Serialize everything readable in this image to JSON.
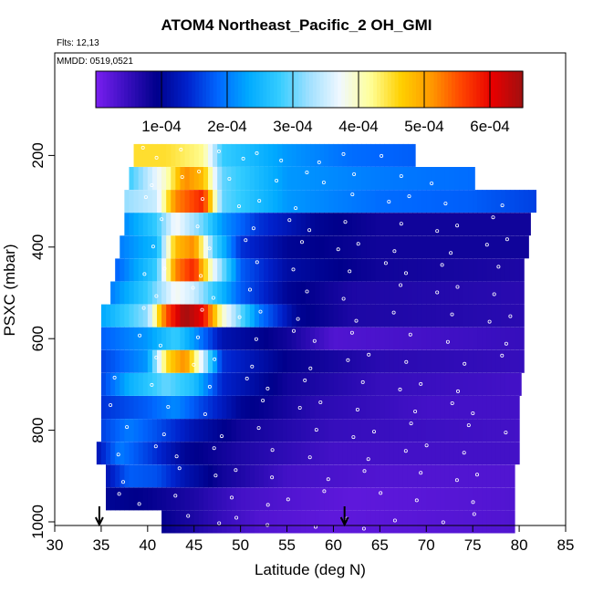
{
  "chart_data": {
    "type": "heatmap",
    "title": "ATOM4 Northeast_Pacific_2 OH_GMI",
    "subtitle_flights": "Flts: 12,13",
    "subtitle_dates": "MMDD: 0519,0521",
    "xlabel": "Latitude (deg N)",
    "ylabel": "PSXC (mbar)",
    "xlim": [
      30,
      85
    ],
    "ylim": [
      1000,
      0
    ],
    "x_ticks": [
      30,
      35,
      40,
      45,
      50,
      55,
      60,
      65,
      70,
      75,
      80,
      85
    ],
    "y_ticks": [
      200,
      400,
      600,
      800,
      1000
    ],
    "colorbar": {
      "range": [
        0,
        0.00065
      ],
      "tick_values": [
        0.0001,
        0.0002,
        0.0003,
        0.0004,
        0.0005,
        0.0006
      ],
      "tick_labels": [
        "1e-04",
        "2e-04",
        "3e-04",
        "4e-04",
        "5e-04",
        "6e-04"
      ],
      "colors": [
        "#7a1ff0",
        "#3a0fc0",
        "#00008b",
        "#0022cc",
        "#0066ff",
        "#00aaff",
        "#33ccff",
        "#a0e0ff",
        "#f0f8ff",
        "#ffff99",
        "#ffd000",
        "#ff9900",
        "#ff4400",
        "#e80000",
        "#a01010"
      ]
    },
    "layers": [
      {
        "p": 200,
        "lat_min": 38.5,
        "lat_max": 68.8,
        "profile": [
          [
            38.5,
            0.00045
          ],
          [
            42,
            0.00045
          ],
          [
            46,
            0.00042
          ],
          [
            48,
            0.00028
          ],
          [
            55,
            0.00022
          ],
          [
            62,
            0.00019
          ],
          [
            68.8,
            0.00018
          ]
        ]
      },
      {
        "p": 250,
        "lat_min": 38.0,
        "lat_max": 75.2,
        "profile": [
          [
            38,
            0.00028
          ],
          [
            42,
            0.0004
          ],
          [
            44,
            0.00052
          ],
          [
            46,
            0.00048
          ],
          [
            48,
            0.0003
          ],
          [
            55,
            0.00022
          ],
          [
            65,
            0.0002
          ],
          [
            75.2,
            0.00019
          ]
        ]
      },
      {
        "p": 300,
        "lat_min": 37.5,
        "lat_max": 81.8,
        "profile": [
          [
            37.5,
            0.00032
          ],
          [
            41,
            0.00035
          ],
          [
            43,
            0.00052
          ],
          [
            46,
            0.00058
          ],
          [
            48,
            0.0003
          ],
          [
            55,
            0.00022
          ],
          [
            65,
            0.00019
          ],
          [
            75,
            0.00018
          ],
          [
            81.8,
            0.00016
          ]
        ]
      },
      {
        "p": 350,
        "lat_min": 37.5,
        "lat_max": 81.2,
        "profile": [
          [
            37.5,
            0.00021
          ],
          [
            41,
            0.00028
          ],
          [
            43,
            0.00038
          ],
          [
            46,
            0.0003
          ],
          [
            48,
            0.00022
          ],
          [
            52,
            0.00015
          ],
          [
            58,
            0.0001
          ],
          [
            65,
            8e-05
          ],
          [
            81.2,
            8e-05
          ]
        ]
      },
      {
        "p": 400,
        "lat_min": 37.0,
        "lat_max": 81.0,
        "profile": [
          [
            37,
            0.0002
          ],
          [
            41,
            0.00025
          ],
          [
            43,
            0.00048
          ],
          [
            45,
            0.00052
          ],
          [
            47,
            0.0003
          ],
          [
            50,
            0.00015
          ],
          [
            55,
            0.0001
          ],
          [
            65,
            8e-05
          ],
          [
            81,
            8e-05
          ]
        ]
      },
      {
        "p": 450,
        "lat_min": 36.5,
        "lat_max": 80.5,
        "profile": [
          [
            36.5,
            0.00018
          ],
          [
            41,
            0.00028
          ],
          [
            43,
            0.00052
          ],
          [
            45,
            0.00058
          ],
          [
            47,
            0.00038
          ],
          [
            50,
            0.00018
          ],
          [
            55,
            0.00011
          ],
          [
            65,
            8e-05
          ],
          [
            80.5,
            7e-05
          ]
        ]
      },
      {
        "p": 500,
        "lat_min": 36.0,
        "lat_max": 80.5,
        "profile": [
          [
            36,
            0.0002
          ],
          [
            40,
            0.00028
          ],
          [
            43,
            0.00038
          ],
          [
            45,
            0.00035
          ],
          [
            47,
            0.00028
          ],
          [
            50,
            0.00018
          ],
          [
            55,
            0.0001
          ],
          [
            62,
            7e-05
          ],
          [
            80.5,
            6e-05
          ]
        ]
      },
      {
        "p": 550,
        "lat_min": 35.0,
        "lat_max": 80.5,
        "profile": [
          [
            35,
            0.00023
          ],
          [
            40,
            0.00032
          ],
          [
            42,
            0.00055
          ],
          [
            44,
            0.00065
          ],
          [
            46,
            0.0006
          ],
          [
            48,
            0.0004
          ],
          [
            52,
            0.0002
          ],
          [
            56,
            0.0001
          ],
          [
            62,
            7e-05
          ],
          [
            80.5,
            6e-05
          ]
        ]
      },
      {
        "p": 600,
        "lat_min": 35.0,
        "lat_max": 80.5,
        "profile": [
          [
            35,
            0.00018
          ],
          [
            40,
            0.00022
          ],
          [
            43,
            0.00028
          ],
          [
            45,
            0.00022
          ],
          [
            48,
            0.00012
          ],
          [
            55,
            8e-05
          ],
          [
            60,
            3e-05
          ],
          [
            80.5,
            5e-05
          ]
        ]
      },
      {
        "p": 650,
        "lat_min": 35.0,
        "lat_max": 80.5,
        "profile": [
          [
            35,
            0.00016
          ],
          [
            40,
            0.00022
          ],
          [
            42,
            0.00045
          ],
          [
            44,
            0.00052
          ],
          [
            46,
            0.00035
          ],
          [
            48,
            0.00015
          ],
          [
            55,
            9e-05
          ],
          [
            65,
            6e-05
          ],
          [
            80.5,
            5e-05
          ]
        ]
      },
      {
        "p": 700,
        "lat_min": 35.0,
        "lat_max": 80.2,
        "profile": [
          [
            35,
            0.00016
          ],
          [
            38,
            0.00024
          ],
          [
            42,
            0.0003
          ],
          [
            45,
            0.00026
          ],
          [
            48,
            0.00014
          ],
          [
            55,
            8e-05
          ],
          [
            65,
            5e-05
          ],
          [
            80.2,
            4e-05
          ]
        ]
      },
      {
        "p": 750,
        "lat_min": 35.0,
        "lat_max": 80.0,
        "profile": [
          [
            35,
            0.00015
          ],
          [
            40,
            0.00018
          ],
          [
            43,
            0.00021
          ],
          [
            46,
            0.00016
          ],
          [
            50,
            0.0001
          ],
          [
            58,
            6e-05
          ],
          [
            70,
            4e-05
          ],
          [
            80,
            4e-05
          ]
        ]
      },
      {
        "p": 800,
        "lat_min": 35.0,
        "lat_max": 80.0,
        "profile": [
          [
            35,
            0.00016
          ],
          [
            38,
            0.0002
          ],
          [
            41,
            0.00017
          ],
          [
            45,
            0.00012
          ],
          [
            50,
            8e-05
          ],
          [
            60,
            5e-05
          ],
          [
            80,
            4e-05
          ]
        ]
      },
      {
        "p": 850,
        "lat_min": 34.5,
        "lat_max": 80.0,
        "profile": [
          [
            34.5,
            0.00012
          ],
          [
            37,
            0.0002
          ],
          [
            40,
            0.00016
          ],
          [
            44,
            0.0001
          ],
          [
            50,
            7e-05
          ],
          [
            60,
            4e-05
          ],
          [
            80,
            4e-05
          ]
        ]
      },
      {
        "p": 900,
        "lat_min": 35.5,
        "lat_max": 79.5,
        "profile": [
          [
            35.5,
            0.00012
          ],
          [
            38,
            0.00018
          ],
          [
            41,
            0.00017
          ],
          [
            44,
            0.00012
          ],
          [
            48,
            8e-05
          ],
          [
            55,
            4e-05
          ],
          [
            65,
            3e-05
          ],
          [
            79.5,
            3e-05
          ]
        ]
      },
      {
        "p": 950,
        "lat_min": 35.5,
        "lat_max": 79.5,
        "profile": [
          [
            35.5,
            0.0001
          ],
          [
            40,
            9e-05
          ],
          [
            45,
            7e-05
          ],
          [
            50,
            4e-05
          ],
          [
            55,
            3e-05
          ],
          [
            62,
            2e-05
          ],
          [
            79.5,
            3e-05
          ]
        ]
      },
      {
        "p": 1000,
        "lat_min": 41.5,
        "lat_max": 79.5,
        "profile": [
          [
            41.5,
            9e-05
          ],
          [
            45,
            7e-05
          ],
          [
            48,
            5e-05
          ],
          [
            52,
            3e-05
          ],
          [
            60,
            2e-05
          ],
          [
            79.5,
            3e-05
          ]
        ]
      }
    ],
    "markers": [
      {
        "lat": 34.8,
        "label": "arrow"
      },
      {
        "lat": 61.2,
        "label": "arrow"
      }
    ]
  }
}
